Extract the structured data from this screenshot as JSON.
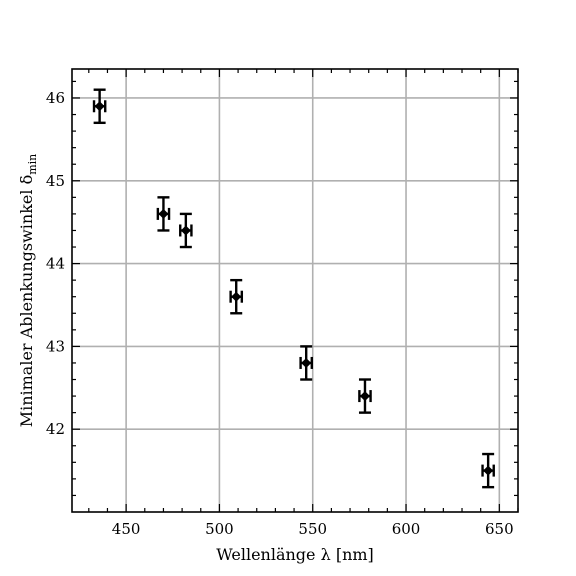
{
  "chart_data": {
    "type": "scatter",
    "title": "",
    "xlabel": "Wellenlänge λ [nm]",
    "ylabel": "Minimaler Ablenkungswinkel δ",
    "ylabel_subscript": "min",
    "xlim": [
      421,
      660
    ],
    "ylim": [
      41.0,
      46.35
    ],
    "xticks": [
      450,
      500,
      550,
      600,
      650
    ],
    "yticks": [
      42,
      43,
      44,
      45,
      46
    ],
    "xtick_labels": [
      "450",
      "500",
      "550",
      "600",
      "650"
    ],
    "ytick_labels": [
      "42",
      "43",
      "44",
      "45",
      "46"
    ],
    "grid": true,
    "marker": "filled-diamond",
    "color": "#000000",
    "points": [
      {
        "x": 435.8,
        "y": 45.9,
        "xerr": 3,
        "yerr": 0.2
      },
      {
        "x": 470.0,
        "y": 44.6,
        "xerr": 3,
        "yerr": 0.2
      },
      {
        "x": 482.0,
        "y": 44.4,
        "xerr": 3,
        "yerr": 0.2
      },
      {
        "x": 509.0,
        "y": 43.6,
        "xerr": 3,
        "yerr": 0.2
      },
      {
        "x": 546.5,
        "y": 42.8,
        "xerr": 3,
        "yerr": 0.2
      },
      {
        "x": 578.0,
        "y": 42.4,
        "xerr": 3,
        "yerr": 0.2
      },
      {
        "x": 644.0,
        "y": 41.5,
        "xerr": 3,
        "yerr": 0.2
      }
    ]
  }
}
